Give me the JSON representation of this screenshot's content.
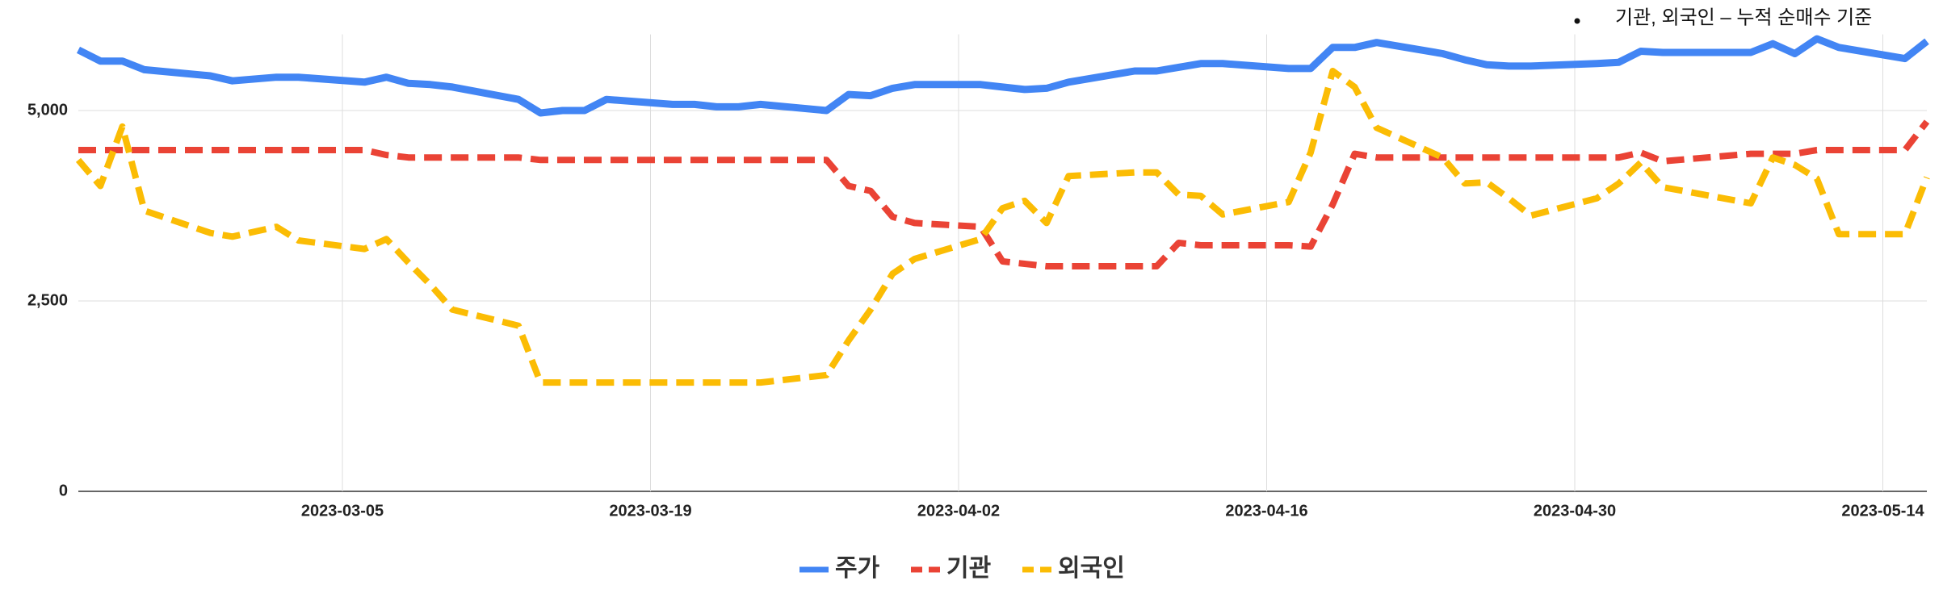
{
  "chart_data": {
    "type": "line",
    "annotation": "기관, 외국인 – 누적 순매수 기준",
    "x": [
      "2023-02-21",
      "2023-02-22",
      "2023-02-23",
      "2023-02-24",
      "2023-02-27",
      "2023-02-28",
      "2023-03-02",
      "2023-03-03",
      "2023-03-06",
      "2023-03-07",
      "2023-03-08",
      "2023-03-09",
      "2023-03-10",
      "2023-03-13",
      "2023-03-14",
      "2023-03-15",
      "2023-03-16",
      "2023-03-17",
      "2023-03-20",
      "2023-03-21",
      "2023-03-22",
      "2023-03-23",
      "2023-03-24",
      "2023-03-27",
      "2023-03-28",
      "2023-03-29",
      "2023-03-30",
      "2023-03-31",
      "2023-04-03",
      "2023-04-04",
      "2023-04-05",
      "2023-04-06",
      "2023-04-07",
      "2023-04-10",
      "2023-04-11",
      "2023-04-12",
      "2023-04-13",
      "2023-04-14",
      "2023-04-17",
      "2023-04-18",
      "2023-04-19",
      "2023-04-20",
      "2023-04-21",
      "2023-04-24",
      "2023-04-25",
      "2023-04-26",
      "2023-04-27",
      "2023-04-28",
      "2023-05-01",
      "2023-05-02",
      "2023-05-03",
      "2023-05-04",
      "2023-05-08",
      "2023-05-09",
      "2023-05-10",
      "2023-05-11",
      "2023-05-12",
      "2023-05-15",
      "2023-05-16"
    ],
    "series": [
      {
        "name": "주가",
        "color": "#4285f4",
        "dashed": false,
        "values": [
          5796,
          5649,
          5649,
          5536,
          5455,
          5390,
          5438,
          5438,
          5373,
          5438,
          5357,
          5341,
          5308,
          5146,
          4968,
          5000,
          5000,
          5146,
          5081,
          5081,
          5049,
          5049,
          5081,
          5000,
          5211,
          5195,
          5292,
          5341,
          5341,
          5308,
          5276,
          5292,
          5373,
          5519,
          5519,
          5568,
          5617,
          5617,
          5552,
          5552,
          5828,
          5828,
          5893,
          5747,
          5666,
          5601,
          5584,
          5584,
          5617,
          5633,
          5779,
          5763,
          5763,
          5877,
          5747,
          5942,
          5828,
          5682,
          5909
        ]
      },
      {
        "name": "기관",
        "color": "#ea4335",
        "dashed": true,
        "values": [
          4481,
          4481,
          4481,
          4481,
          4481,
          4481,
          4481,
          4481,
          4481,
          4416,
          4383,
          4383,
          4383,
          4383,
          4351,
          4351,
          4351,
          4351,
          4351,
          4351,
          4351,
          4351,
          4351,
          4351,
          4010,
          3945,
          3604,
          3523,
          3474,
          3019,
          2987,
          2955,
          2955,
          2955,
          2955,
          3263,
          3231,
          3231,
          3231,
          3214,
          3766,
          4432,
          4383,
          4383,
          4383,
          4383,
          4383,
          4383,
          4383,
          4383,
          4448,
          4334,
          4432,
          4432,
          4432,
          4481,
          4481,
          4481,
          4854
        ]
      },
      {
        "name": "외국인",
        "color": "#fbbc04",
        "dashed": true,
        "values": [
          4351,
          4010,
          4789,
          3685,
          3393,
          3344,
          3474,
          3295,
          3182,
          3312,
          3003,
          2711,
          2386,
          2175,
          1429,
          1429,
          1429,
          1429,
          1429,
          1429,
          1429,
          1429,
          1429,
          1526,
          1981,
          2386,
          2857,
          3052,
          3312,
          3718,
          3815,
          3523,
          4140,
          4188,
          4188,
          3896,
          3880,
          3636,
          3799,
          4448,
          5519,
          5308,
          4773,
          4383,
          4042,
          4058,
          3847,
          3620,
          3847,
          4042,
          4318,
          3994,
          3782,
          4383,
          4286,
          4107,
          3377,
          3377,
          4123
        ]
      }
    ],
    "xlim": [
      "2023-02-21",
      "2023-05-16"
    ],
    "xticks": [
      "2023-03-05",
      "2023-03-19",
      "2023-04-02",
      "2023-04-16",
      "2023-04-30",
      "2023-05-14"
    ],
    "ylim": [
      0,
      6000
    ],
    "yticks": [
      0,
      {
        "value": 2500,
        "label": "2,500"
      },
      {
        "value": 5000,
        "label": "5,000"
      }
    ],
    "grid": true,
    "legend": "bottom"
  }
}
